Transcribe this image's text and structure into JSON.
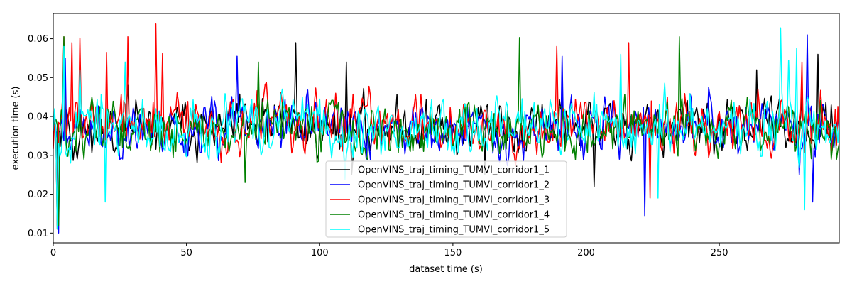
{
  "chart_data": {
    "type": "line",
    "title": "",
    "xlabel": "dataset time (s)",
    "ylabel": "execution time (s)",
    "xlim": [
      0,
      295
    ],
    "ylim": [
      0.0075,
      0.0665
    ],
    "xticks": [
      0,
      50,
      100,
      150,
      200,
      250
    ],
    "yticks": [
      0.01,
      0.02,
      0.03,
      0.04,
      0.05,
      0.06
    ],
    "ytick_labels": [
      "0.01",
      "0.02",
      "0.03",
      "0.04",
      "0.05",
      "0.06"
    ],
    "grid": false,
    "legend_position": "lower-center",
    "sample_step_s": 0.5,
    "series": [
      {
        "name": "OpenVINS_traj_timing_TUMVI_corridor1_1",
        "color": "#000000",
        "base": 0.037,
        "amp": 0.0055,
        "seed": 11,
        "spikes": [
          [
            0.5,
            0.041
          ],
          [
            1.5,
            0.012
          ],
          [
            4,
            0.058
          ],
          [
            91,
            0.059
          ],
          [
            110,
            0.054
          ],
          [
            112,
            0.025
          ],
          [
            162,
            0.025
          ],
          [
            203,
            0.022
          ],
          [
            264,
            0.052
          ],
          [
            287,
            0.056
          ],
          [
            292,
            0.043
          ]
        ]
      },
      {
        "name": "OpenVINS_traj_timing_TUMVI_corridor1_2",
        "color": "#0000ff",
        "base": 0.037,
        "amp": 0.0055,
        "seed": 23,
        "spikes": [
          [
            0.5,
            0.04
          ],
          [
            2,
            0.01
          ],
          [
            4.5,
            0.055
          ],
          [
            69,
            0.0555
          ],
          [
            191,
            0.0555
          ],
          [
            222,
            0.0145
          ],
          [
            283,
            0.061
          ],
          [
            285,
            0.018
          ],
          [
            280,
            0.025
          ],
          [
            293,
            0.032
          ]
        ]
      },
      {
        "name": "OpenVINS_traj_timing_TUMVI_corridor1_3",
        "color": "#ff0000",
        "base": 0.038,
        "amp": 0.0058,
        "seed": 37,
        "spikes": [
          [
            0.5,
            0.039
          ],
          [
            1.5,
            0.011
          ],
          [
            4,
            0.0605
          ],
          [
            7,
            0.059
          ],
          [
            10,
            0.0602
          ],
          [
            20,
            0.0565
          ],
          [
            28,
            0.0605
          ],
          [
            38.5,
            0.0638
          ],
          [
            41,
            0.0562
          ],
          [
            189,
            0.058
          ],
          [
            216,
            0.059
          ],
          [
            224,
            0.019
          ],
          [
            281,
            0.054
          ],
          [
            293,
            0.036
          ]
        ]
      },
      {
        "name": "OpenVINS_traj_timing_TUMVI_corridor1_4",
        "color": "#008000",
        "base": 0.0365,
        "amp": 0.0055,
        "seed": 51,
        "spikes": [
          [
            0.5,
            0.038
          ],
          [
            2,
            0.012
          ],
          [
            4,
            0.0605
          ],
          [
            72,
            0.023
          ],
          [
            77,
            0.054
          ],
          [
            175,
            0.0603
          ],
          [
            235,
            0.0605
          ],
          [
            292,
            0.029
          ],
          [
            294,
            0.029
          ]
        ]
      },
      {
        "name": "OpenVINS_traj_timing_TUMVI_corridor1_5",
        "color": "#00ffff",
        "base": 0.0375,
        "amp": 0.0058,
        "seed": 67,
        "spikes": [
          [
            0.5,
            0.042
          ],
          [
            1.5,
            0.011
          ],
          [
            4,
            0.058
          ],
          [
            10,
            0.052
          ],
          [
            19.5,
            0.018
          ],
          [
            27,
            0.054
          ],
          [
            213,
            0.056
          ],
          [
            227,
            0.019
          ],
          [
            273,
            0.0628
          ],
          [
            276,
            0.0545
          ],
          [
            279,
            0.0575
          ],
          [
            282,
            0.016
          ],
          [
            292,
            0.034
          ]
        ]
      }
    ]
  }
}
